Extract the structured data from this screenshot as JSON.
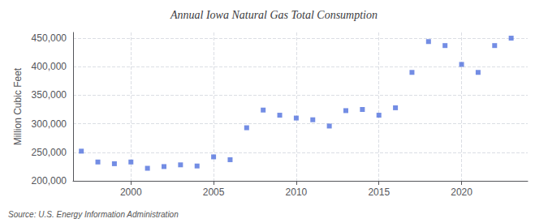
{
  "chart_data": {
    "type": "scatter",
    "title": "Annual Iowa Natural Gas Total Consumption",
    "ylabel": "Million Cubic Feet",
    "annotation": "Source: U.S. Energy Information Administration",
    "x": [
      1997,
      1998,
      1999,
      2000,
      2001,
      2002,
      2003,
      2004,
      2005,
      2006,
      2007,
      2008,
      2009,
      2010,
      2011,
      2012,
      2013,
      2014,
      2015,
      2016,
      2017,
      2018,
      2019,
      2020,
      2021,
      2022,
      2023
    ],
    "values": [
      252000,
      233000,
      230000,
      233000,
      222000,
      225000,
      228000,
      226000,
      242000,
      237000,
      293000,
      324000,
      315000,
      310000,
      307000,
      296000,
      323000,
      325000,
      315000,
      328000,
      390000,
      444000,
      437000,
      404000,
      390000,
      437000,
      450000
    ],
    "xlim": [
      1996.5,
      2024
    ],
    "xticks": [
      2000,
      2005,
      2010,
      2015,
      2020
    ],
    "ylim": [
      200000,
      460000
    ],
    "yticks": [
      {
        "value": 200000,
        "label": "200,000"
      },
      {
        "value": 250000,
        "label": "250,000"
      },
      {
        "value": 300000,
        "label": "300,000"
      },
      {
        "value": 350000,
        "label": "350,000"
      },
      {
        "value": 400000,
        "label": "400,000"
      },
      {
        "value": 450000,
        "label": "450,000"
      }
    ],
    "marker": "square",
    "grid": true
  }
}
